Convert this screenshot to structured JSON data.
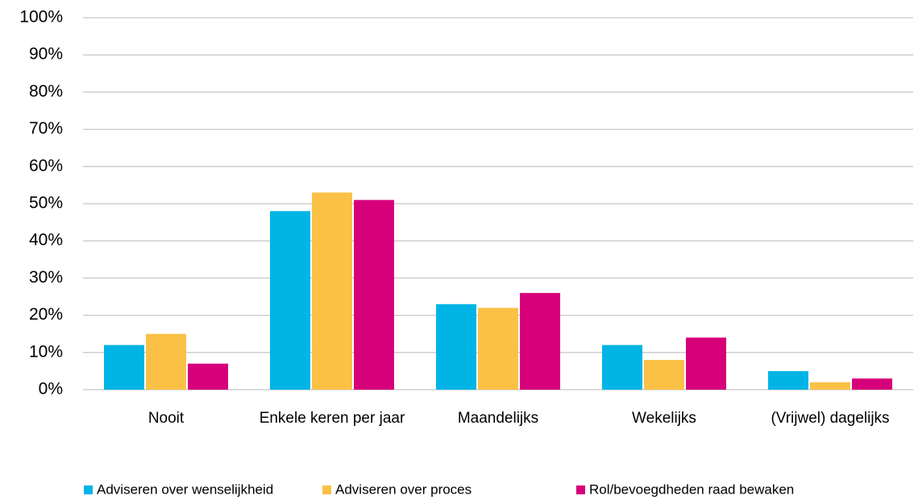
{
  "chart_data": {
    "type": "bar",
    "categories": [
      "Nooit",
      "Enkele keren per jaar",
      "Maandelijks",
      "Wekelijks",
      "(Vrijwel) dagelijks"
    ],
    "series": [
      {
        "name": "Adviseren over wenselijkheid",
        "color": "#00b4e6",
        "values": [
          12,
          48,
          23,
          12,
          5
        ]
      },
      {
        "name": "Adviseren over proces",
        "color": "#fbc146",
        "values": [
          15,
          53,
          22,
          8,
          2
        ]
      },
      {
        "name": "Rol/bevoegdheden raad bewaken",
        "color": "#d6007a",
        "values": [
          7,
          51,
          26,
          14,
          3
        ]
      }
    ],
    "ylim": [
      0,
      100
    ],
    "yticks": [
      {
        "value": 0,
        "label": "0%"
      },
      {
        "value": 10,
        "label": "10%"
      },
      {
        "value": 20,
        "label": "20%"
      },
      {
        "value": 30,
        "label": "30%"
      },
      {
        "value": 40,
        "label": "40%"
      },
      {
        "value": 50,
        "label": "50%"
      },
      {
        "value": 60,
        "label": "60%"
      },
      {
        "value": 70,
        "label": "70%"
      },
      {
        "value": 80,
        "label": "80%"
      },
      {
        "value": 90,
        "label": "90%"
      },
      {
        "value": 100,
        "label": "100%"
      }
    ],
    "grid": true,
    "legend": "bottom"
  }
}
